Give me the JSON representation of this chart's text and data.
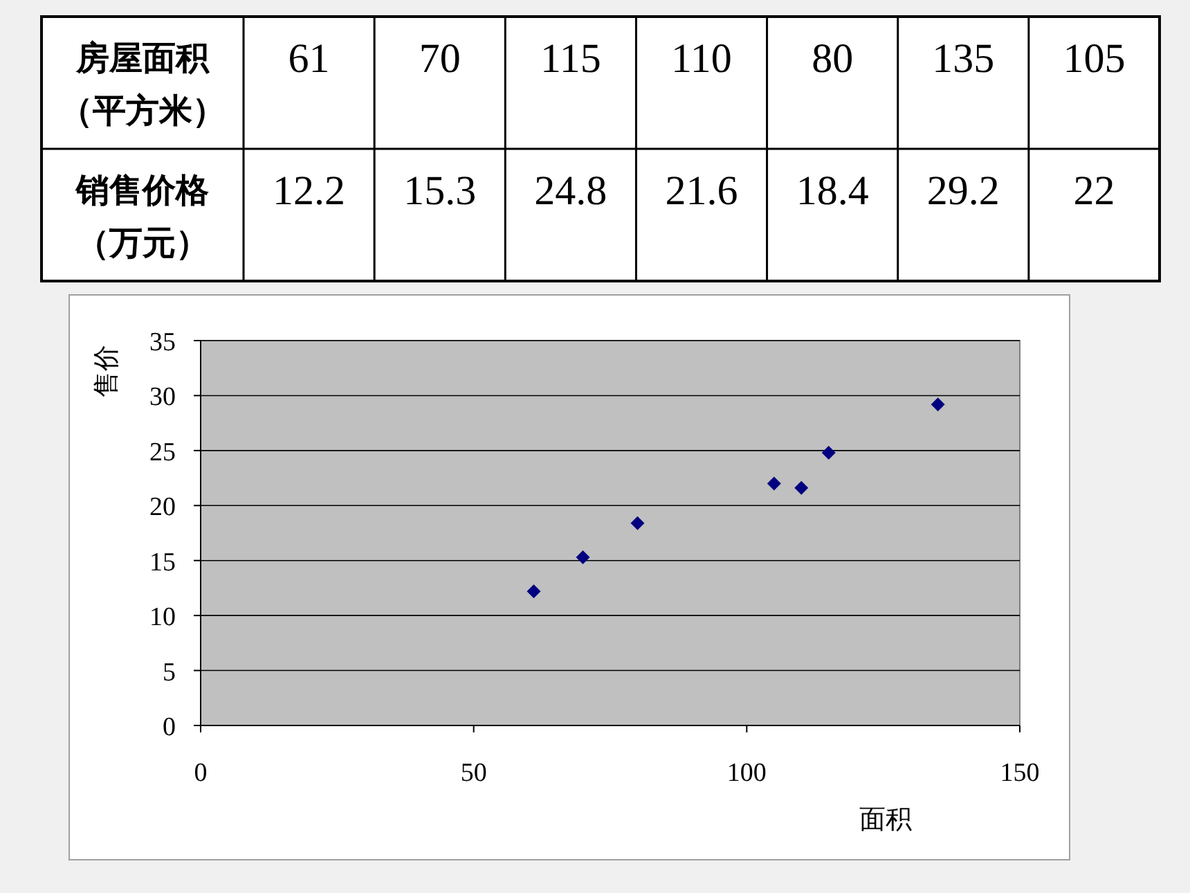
{
  "chart_data": [
    {
      "type": "other",
      "annotations": [
        "房屋面积（平方米）",
        "61",
        "70",
        "115",
        "110",
        "80",
        "135",
        "105",
        "销售价格（万元）",
        "12.2",
        "15.3",
        "24.8",
        "21.6",
        "18.4",
        "29.2",
        "22"
      ]
    },
    {
      "type": "scatter",
      "xlabel": "面积",
      "ylabel": "售价",
      "x": [
        61,
        70,
        115,
        110,
        80,
        135,
        105
      ],
      "series": [
        {
          "color": "#000080",
          "values": [
            12.2,
            15.3,
            24.8,
            21.6,
            18.4,
            29.2,
            22
          ]
        }
      ],
      "xlim": [
        0,
        150
      ],
      "xticks": [
        0,
        50,
        100,
        150
      ],
      "ylim": [
        0,
        35
      ],
      "yticks": [
        0,
        5,
        10,
        15,
        20,
        25,
        30,
        35
      ],
      "grid": "y",
      "marker": "diamond"
    }
  ]
}
